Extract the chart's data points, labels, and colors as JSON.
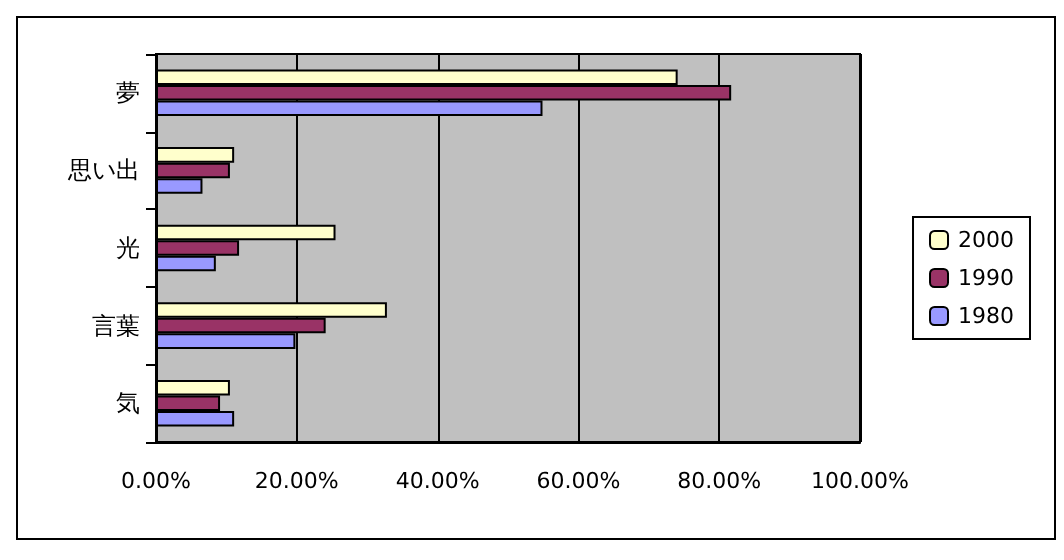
{
  "chart_data": {
    "type": "bar",
    "orientation": "horizontal",
    "categories": [
      "夢",
      "思い出",
      "光",
      "言葉",
      "気"
    ],
    "series": [
      {
        "name": "2000",
        "color": "#ffffcc",
        "values": [
          74.1,
          11.1,
          25.5,
          32.8,
          10.5
        ]
      },
      {
        "name": "1990",
        "color": "#993366",
        "values": [
          81.7,
          10.5,
          11.8,
          24.1,
          9.1
        ]
      },
      {
        "name": "1980",
        "color": "#9999ff",
        "values": [
          54.9,
          6.6,
          8.5,
          19.8,
          11.1
        ]
      }
    ],
    "xlim": [
      0,
      100
    ],
    "xticks": [
      {
        "value": 0,
        "label": "0.00%"
      },
      {
        "value": 20,
        "label": "20.00%"
      },
      {
        "value": 40,
        "label": "40.00%"
      },
      {
        "value": 60,
        "label": "60.00%"
      },
      {
        "value": 80,
        "label": "80.00%"
      },
      {
        "value": 100,
        "label": "100.00%"
      }
    ],
    "grid": "x",
    "legend": "right"
  }
}
